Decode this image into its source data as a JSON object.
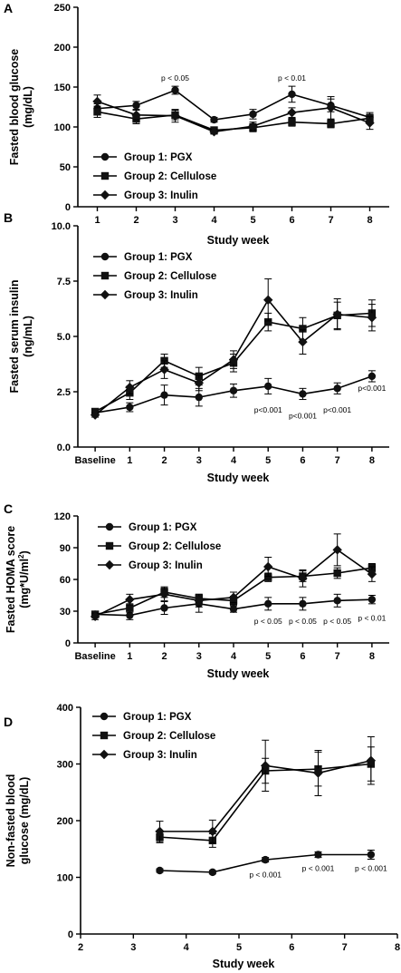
{
  "chart_data": [
    {
      "panel_label": "A",
      "type": "line",
      "ylabel": "Fasted blood glucose (mg/dL)",
      "ylabel_lines": [
        "Fasted blood glucose",
        "(mg/dL)"
      ],
      "xlabel": "Study week",
      "ylim": [
        0,
        250
      ],
      "yticks": [
        0,
        50,
        100,
        150,
        200,
        250
      ],
      "ytick_labels": [
        "0",
        "50",
        "100",
        "150",
        "200",
        "250"
      ],
      "xlim": [
        0.5,
        8.5
      ],
      "xticks": [
        1,
        2,
        3,
        4,
        5,
        6,
        7,
        8
      ],
      "xtick_labels": [
        "1",
        "2",
        "3",
        "4",
        "5",
        "6",
        "7",
        "8"
      ],
      "legend_position": "bottom-left",
      "series": [
        {
          "name": "Group 1: PGX",
          "marker": "circle",
          "x": [
            1,
            2,
            3,
            4,
            5,
            6,
            7,
            8
          ],
          "values": [
            123,
            127,
            146,
            109,
            116,
            141,
            127,
            112
          ],
          "errors": [
            6,
            5,
            5,
            3,
            6,
            10,
            8,
            6
          ]
        },
        {
          "name": "Group 2: Cellulose",
          "marker": "square",
          "x": [
            1,
            2,
            3,
            4,
            5,
            6,
            7,
            8
          ],
          "values": [
            119,
            110,
            115,
            96,
            99,
            106,
            104,
            111
          ],
          "errors": [
            7,
            6,
            6,
            3,
            5,
            5,
            5,
            5
          ]
        },
        {
          "name": "Group 3: Inulin",
          "marker": "diamond",
          "x": [
            1,
            2,
            3,
            4,
            5,
            6,
            7,
            8
          ],
          "values": [
            132,
            115,
            114,
            94,
            101,
            118,
            124,
            105
          ],
          "errors": [
            8,
            6,
            8,
            3,
            5,
            6,
            14,
            8
          ]
        }
      ],
      "annotations": [
        {
          "text": "p < 0.05",
          "x": 3,
          "y": 158
        },
        {
          "text": "p < 0.01",
          "x": 6,
          "y": 158
        }
      ]
    },
    {
      "panel_label": "B",
      "type": "line",
      "ylabel": "Fasted serum insulin (ng/mL)",
      "ylabel_lines": [
        "Fasted serum insulin",
        "(ng/mL)"
      ],
      "xlabel": "Study week",
      "ylim": [
        0,
        10
      ],
      "yticks": [
        0,
        2.5,
        5,
        7.5,
        10
      ],
      "ytick_labels": [
        "0.0",
        "2.5",
        "5.0",
        "7.5",
        "10.0"
      ],
      "xlim": [
        -0.5,
        8.5
      ],
      "xticks": [
        0,
        1,
        2,
        3,
        4,
        5,
        6,
        7,
        8
      ],
      "xtick_labels": [
        "Baseline",
        "1",
        "2",
        "3",
        "4",
        "5",
        "6",
        "7",
        "8"
      ],
      "legend_position": "top-left",
      "series": [
        {
          "name": "Group 1: PGX",
          "marker": "circle",
          "x": [
            0,
            1,
            2,
            3,
            4,
            5,
            6,
            7,
            8
          ],
          "values": [
            1.55,
            1.8,
            2.35,
            2.25,
            2.55,
            2.75,
            2.4,
            2.65,
            3.2
          ],
          "errors": [
            0.1,
            0.2,
            0.45,
            0.4,
            0.3,
            0.35,
            0.25,
            0.25,
            0.25
          ]
        },
        {
          "name": "Group 2: Cellulose",
          "marker": "square",
          "x": [
            0,
            1,
            2,
            3,
            4,
            5,
            6,
            7,
            8
          ],
          "values": [
            1.6,
            2.45,
            3.9,
            3.2,
            3.8,
            5.65,
            5.35,
            5.95,
            6.05
          ],
          "errors": [
            0.1,
            0.3,
            0.3,
            0.4,
            0.4,
            0.4,
            0.5,
            0.6,
            0.6
          ]
        },
        {
          "name": "Group 3: Inulin",
          "marker": "diamond",
          "x": [
            0,
            1,
            2,
            3,
            4,
            5,
            6,
            7,
            8
          ],
          "values": [
            1.45,
            2.7,
            3.5,
            2.9,
            3.95,
            6.65,
            4.75,
            6.0,
            5.85
          ],
          "errors": [
            0.1,
            0.3,
            0.4,
            0.35,
            0.4,
            0.95,
            0.55,
            0.7,
            0.6
          ]
        }
      ],
      "annotations": [
        {
          "text": "p<0.001",
          "x": 5,
          "y": 1.55
        },
        {
          "text": "p<0.001",
          "x": 6,
          "y": 1.3
        },
        {
          "text": "p<0.001",
          "x": 7,
          "y": 1.55
        },
        {
          "text": "p<0.001",
          "x": 8,
          "y": 2.55
        }
      ]
    },
    {
      "panel_label": "C",
      "type": "line",
      "ylabel": "Fasted HOMA score (mg*U/ml²)",
      "ylabel_lines": [
        "Fasted HOMA score",
        "(mg*U/ml",
        "2",
        ")"
      ],
      "xlabel": "Study week",
      "ylim": [
        0,
        120
      ],
      "yticks": [
        0,
        30,
        60,
        90,
        120
      ],
      "ytick_labels": [
        "0",
        "30",
        "60",
        "90",
        "120"
      ],
      "xlim": [
        -0.5,
        8.5
      ],
      "xticks": [
        0,
        1,
        2,
        3,
        4,
        5,
        6,
        7,
        8
      ],
      "xtick_labels": [
        "Baseline",
        "1",
        "2",
        "3",
        "4",
        "5",
        "6",
        "7",
        "8"
      ],
      "legend_position": "top-left",
      "series": [
        {
          "name": "Group 1: PGX",
          "marker": "circle",
          "x": [
            0,
            1,
            2,
            3,
            4,
            5,
            6,
            7,
            8
          ],
          "values": [
            27,
            26,
            33,
            37,
            32,
            37,
            37,
            40,
            41
          ],
          "errors": [
            3,
            4,
            6,
            8,
            3,
            6,
            6,
            6,
            4
          ]
        },
        {
          "name": "Group 2: Cellulose",
          "marker": "square",
          "x": [
            0,
            1,
            2,
            3,
            4,
            5,
            6,
            7,
            8
          ],
          "values": [
            27,
            33,
            48,
            42,
            40,
            62,
            63,
            66,
            71
          ],
          "errors": [
            3,
            4,
            5,
            4,
            4,
            4,
            5,
            5,
            4
          ]
        },
        {
          "name": "Group 3: Inulin",
          "marker": "diamond",
          "x": [
            0,
            1,
            2,
            3,
            4,
            5,
            6,
            7,
            8
          ],
          "values": [
            25,
            41,
            46,
            40,
            43,
            72,
            61,
            88,
            65
          ],
          "errors": [
            3,
            5,
            6,
            6,
            5,
            9,
            8,
            15,
            7
          ]
        }
      ],
      "annotations": [
        {
          "text": "p < 0.05",
          "x": 5,
          "y": 18
        },
        {
          "text": "p < 0.05",
          "x": 6,
          "y": 18
        },
        {
          "text": "p < 0.05",
          "x": 7,
          "y": 18
        },
        {
          "text": "p < 0.01",
          "x": 8,
          "y": 21
        }
      ]
    },
    {
      "panel_label": "D",
      "type": "line",
      "ylabel": "Non-fasted blood glucose (mg/dL)",
      "ylabel_lines": [
        "Non-fasted blood",
        "glucose (mg/dL)"
      ],
      "xlabel": "Study week",
      "ylim": [
        0,
        400
      ],
      "yticks": [
        0,
        100,
        200,
        300,
        400
      ],
      "ytick_labels": [
        "0",
        "100",
        "200",
        "300",
        "400"
      ],
      "xlim": [
        2,
        8
      ],
      "xticks": [
        2,
        3,
        4,
        5,
        6,
        7,
        8
      ],
      "xtick_labels": [
        "2",
        "3",
        "4",
        "5",
        "6",
        "7",
        "8"
      ],
      "legend_position": "top-left",
      "series": [
        {
          "name": "Group 1: PGX",
          "marker": "circle",
          "x": [
            3.5,
            4.5,
            5.5,
            6.5,
            7.5
          ],
          "values": [
            112,
            109,
            131,
            140,
            140
          ],
          "errors": [
            3,
            3,
            4,
            5,
            8
          ]
        },
        {
          "name": "Group 2: Cellulose",
          "marker": "square",
          "x": [
            3.5,
            4.5,
            5.5,
            6.5,
            7.5
          ],
          "values": [
            171,
            165,
            288,
            291,
            300
          ],
          "errors": [
            10,
            12,
            22,
            30,
            30
          ]
        },
        {
          "name": "Group 3: Inulin",
          "marker": "diamond",
          "x": [
            3.5,
            4.5,
            5.5,
            6.5,
            7.5
          ],
          "values": [
            181,
            181,
            297,
            284,
            306
          ],
          "errors": [
            18,
            20,
            45,
            40,
            42
          ]
        }
      ],
      "annotations": [
        {
          "text": "p < 0.001",
          "x": 5.5,
          "y": 100
        },
        {
          "text": "p < 0.001",
          "x": 6.5,
          "y": 111
        },
        {
          "text": "p < 0.001",
          "x": 7.5,
          "y": 111
        }
      ]
    }
  ]
}
